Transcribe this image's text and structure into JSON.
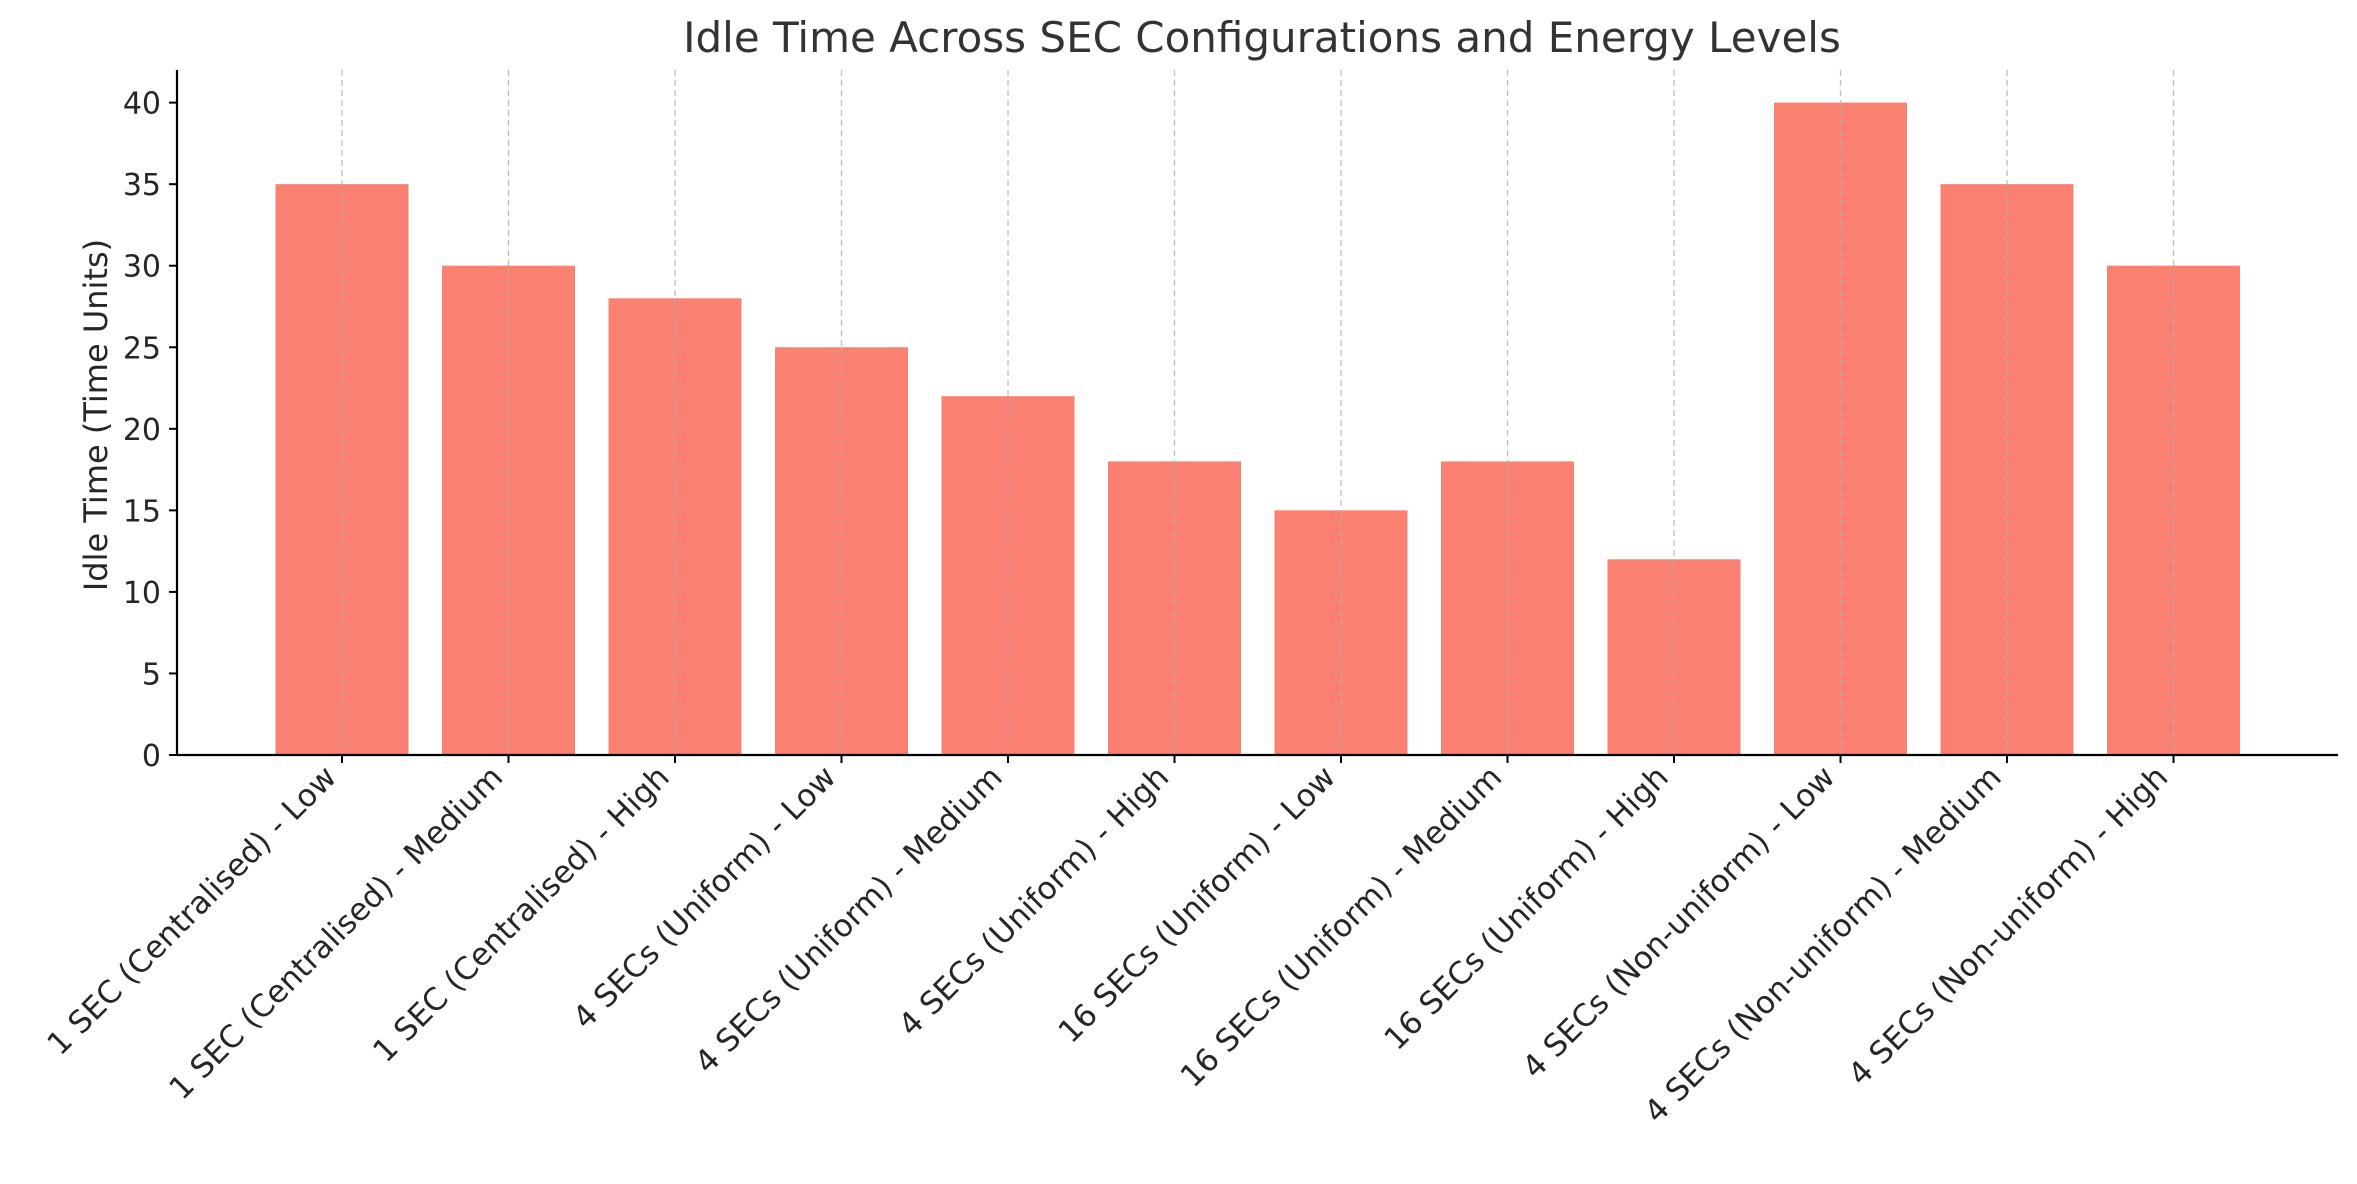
{
  "chart_data": {
    "type": "bar",
    "title": "Idle Time Across SEC Configurations and Energy Levels",
    "xlabel": "",
    "ylabel": "Idle Time (Time Units)",
    "ylim": [
      0,
      42
    ],
    "yticks": [
      0,
      5,
      10,
      15,
      20,
      25,
      30,
      35,
      40
    ],
    "grid": "vertical dashed",
    "bar_color": "#fa8072",
    "categories": [
      "1 SEC (Centralised) - Low",
      "1 SEC (Centralised) - Medium",
      "1 SEC (Centralised) - High",
      "4 SECs (Uniform) - Low",
      "4 SECs (Uniform) - Medium",
      "4 SECs (Uniform) - High",
      "16 SECs (Uniform) - Low",
      "16 SECs (Uniform) - Medium",
      "16 SECs (Uniform) - High",
      "4 SECs (Non-uniform) - Low",
      "4 SECs (Non-uniform) - Medium",
      "4 SECs (Non-uniform) - High"
    ],
    "values": [
      35,
      30,
      28,
      25,
      22,
      18,
      15,
      18,
      12,
      40,
      35,
      30
    ]
  }
}
